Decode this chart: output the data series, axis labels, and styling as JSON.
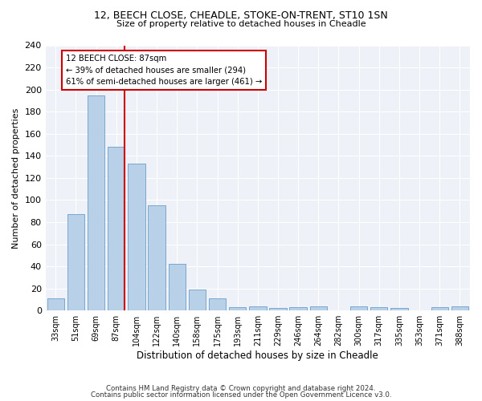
{
  "title_line1": "12, BEECH CLOSE, CHEADLE, STOKE-ON-TRENT, ST10 1SN",
  "title_line2": "Size of property relative to detached houses in Cheadle",
  "xlabel": "Distribution of detached houses by size in Cheadle",
  "ylabel": "Number of detached properties",
  "categories": [
    "33sqm",
    "51sqm",
    "69sqm",
    "87sqm",
    "104sqm",
    "122sqm",
    "140sqm",
    "158sqm",
    "175sqm",
    "193sqm",
    "211sqm",
    "229sqm",
    "246sqm",
    "264sqm",
    "282sqm",
    "300sqm",
    "317sqm",
    "335sqm",
    "353sqm",
    "371sqm",
    "388sqm"
  ],
  "values": [
    11,
    87,
    195,
    148,
    133,
    95,
    42,
    19,
    11,
    3,
    4,
    2,
    3,
    4,
    0,
    4,
    3,
    2,
    0,
    3,
    4
  ],
  "bar_color": "#b8d0e8",
  "bar_edge_color": "#6a9fc8",
  "highlight_index": 3,
  "highlight_line_color": "#cc0000",
  "annotation_text": "12 BEECH CLOSE: 87sqm\n← 39% of detached houses are smaller (294)\n61% of semi-detached houses are larger (461) →",
  "annotation_box_color": "#ffffff",
  "annotation_box_edge": "#cc0000",
  "ylim": [
    0,
    240
  ],
  "yticks": [
    0,
    20,
    40,
    60,
    80,
    100,
    120,
    140,
    160,
    180,
    200,
    220,
    240
  ],
  "background_color": "#eef2f8",
  "footer_line1": "Contains HM Land Registry data © Crown copyright and database right 2024.",
  "footer_line2": "Contains public sector information licensed under the Open Government Licence v3.0."
}
